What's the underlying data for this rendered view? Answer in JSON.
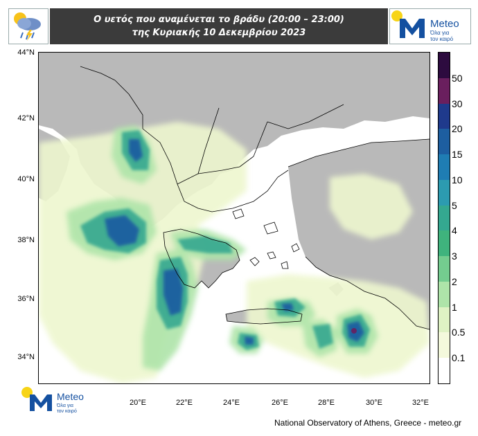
{
  "header": {
    "title_line1": "Ο υετός που αναμένεται το βράδυ (20:00 – 23:00)",
    "title_line2": "της Κυριακής 10 Δεκεμβρίου 2023",
    "weather_icon": "rain-cloud-icon"
  },
  "logo": {
    "brand": "Meteo",
    "tagline_line1": "Όλα για",
    "tagline_line2": "τον καιρό",
    "colors": {
      "blue": "#1450a0",
      "yellow": "#f7d417"
    }
  },
  "map": {
    "lat_labels": [
      "44°N",
      "42°N",
      "40°N",
      "38°N",
      "36°N",
      "34°N"
    ],
    "lon_labels": [
      "20°E",
      "22°E",
      "24°E",
      "26°E",
      "28°E",
      "30°E",
      "32°E"
    ],
    "colors": {
      "sea": "#ffffff",
      "land_no_data": "#b9b9b9"
    }
  },
  "colorbar": {
    "labels": [
      "50",
      "30",
      "20",
      "15",
      "10",
      "5",
      "4",
      "3",
      "2",
      "1",
      "0.5",
      "0.1"
    ],
    "colors": [
      "#2d0b3f",
      "#6a1f5e",
      "#1f3a8c",
      "#1d5ea0",
      "#1f7db3",
      "#2c9bb0",
      "#34a890",
      "#3fb37d",
      "#74cc8f",
      "#aee4a9",
      "#dff2c4",
      "#f4f9dc",
      "#ffffff"
    ]
  },
  "credit": "National Observatory of Athens, Greece - meteo.gr"
}
